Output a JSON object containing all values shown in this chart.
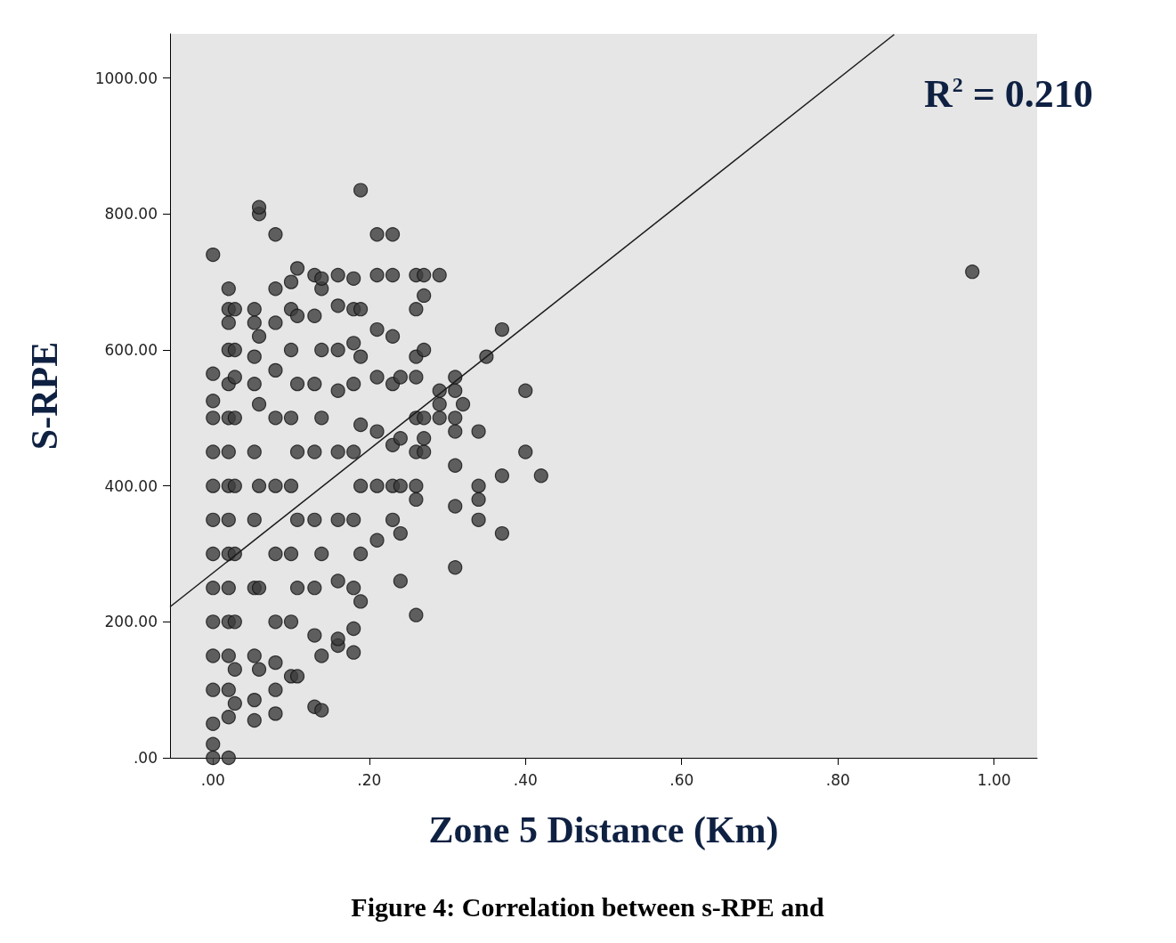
{
  "chart_data": {
    "type": "scatter",
    "xlabel": "Zone 5 Distance (Km)",
    "ylabel": "S-RPE",
    "annotations": [
      "R$^{2}$ = 0.210",
      "Figure 4: Correlation between s-RPE and"
    ],
    "xlim": [
      -0.055,
      1.055
    ],
    "ylim": [
      0,
      1065
    ],
    "xticks": [
      {
        "value": 0,
        "label": ".00"
      },
      {
        "value": 0.2,
        "label": ".20"
      },
      {
        "value": 0.4,
        "label": ".40"
      },
      {
        "value": 0.6,
        "label": ".60"
      },
      {
        "value": 0.8,
        "label": ".80"
      },
      {
        "value": 1,
        "label": "1.00"
      }
    ],
    "yticks": [
      {
        "value": 0,
        "label": ".00"
      },
      {
        "value": 200,
        "label": "200.00"
      },
      {
        "value": 400,
        "label": "400.00"
      },
      {
        "value": 600,
        "label": "600.00"
      },
      {
        "value": 800,
        "label": "800.00"
      },
      {
        "value": 1000,
        "label": "1000.00"
      }
    ],
    "grid": false,
    "marker": "circle",
    "series": [
      {
        "color": "#3c3c3c",
        "x": [
          0,
          0,
          0,
          0,
          0,
          0,
          0,
          0,
          0,
          0,
          0,
          0,
          0,
          0,
          0,
          0.02,
          0.02,
          0.02,
          0.02,
          0.02,
          0.02,
          0.02,
          0.02,
          0.02,
          0.02,
          0.02,
          0.02,
          0.02,
          0.02,
          0.02,
          0.02,
          0.028,
          0.028,
          0.028,
          0.028,
          0.028,
          0.028,
          0.028,
          0.028,
          0.028,
          0.053,
          0.053,
          0.053,
          0.053,
          0.053,
          0.053,
          0.053,
          0.053,
          0.053,
          0.053,
          0.059,
          0.059,
          0.059,
          0.059,
          0.059,
          0.059,
          0.059,
          0.08,
          0.08,
          0.08,
          0.08,
          0.08,
          0.08,
          0.08,
          0.08,
          0.08,
          0.08,
          0.08,
          0.1,
          0.1,
          0.1,
          0.1,
          0.1,
          0.1,
          0.1,
          0.1,
          0.108,
          0.108,
          0.108,
          0.108,
          0.108,
          0.108,
          0.108,
          0.13,
          0.13,
          0.13,
          0.13,
          0.13,
          0.13,
          0.13,
          0.13,
          0.139,
          0.139,
          0.139,
          0.139,
          0.139,
          0.139,
          0.139,
          0.16,
          0.16,
          0.16,
          0.16,
          0.16,
          0.16,
          0.16,
          0.16,
          0.16,
          0.18,
          0.18,
          0.18,
          0.18,
          0.18,
          0.18,
          0.18,
          0.18,
          0.18,
          0.189,
          0.189,
          0.189,
          0.189,
          0.189,
          0.189,
          0.189,
          0.21,
          0.21,
          0.21,
          0.21,
          0.21,
          0.21,
          0.21,
          0.23,
          0.23,
          0.23,
          0.23,
          0.23,
          0.23,
          0.23,
          0.24,
          0.24,
          0.24,
          0.24,
          0.24,
          0.26,
          0.26,
          0.26,
          0.26,
          0.26,
          0.26,
          0.26,
          0.26,
          0.26,
          0.27,
          0.27,
          0.27,
          0.27,
          0.27,
          0.27,
          0.29,
          0.29,
          0.29,
          0.29,
          0.31,
          0.31,
          0.31,
          0.31,
          0.31,
          0.31,
          0.31,
          0.32,
          0.34,
          0.34,
          0.34,
          0.34,
          0.35,
          0.37,
          0.37,
          0.37,
          0.4,
          0.4,
          0.42,
          0.972
        ],
        "values": [
          0,
          20,
          50,
          100,
          150,
          200,
          250,
          300,
          350,
          400,
          450,
          500,
          525,
          565,
          740,
          0,
          60,
          100,
          150,
          200,
          250,
          300,
          350,
          400,
          450,
          500,
          550,
          600,
          640,
          660,
          690,
          80,
          130,
          200,
          300,
          400,
          500,
          560,
          600,
          660,
          55,
          85,
          150,
          250,
          350,
          450,
          550,
          590,
          640,
          660,
          130,
          250,
          400,
          520,
          620,
          800,
          810,
          65,
          100,
          140,
          200,
          300,
          400,
          500,
          570,
          640,
          690,
          770,
          120,
          200,
          300,
          400,
          500,
          600,
          660,
          700,
          120,
          250,
          350,
          450,
          550,
          650,
          720,
          75,
          180,
          250,
          350,
          450,
          550,
          650,
          710,
          70,
          150,
          300,
          500,
          600,
          690,
          705,
          165,
          175,
          260,
          350,
          450,
          540,
          600,
          665,
          710,
          155,
          190,
          250,
          350,
          450,
          550,
          610,
          660,
          705,
          230,
          300,
          400,
          490,
          590,
          660,
          835,
          320,
          400,
          480,
          560,
          630,
          710,
          770,
          350,
          400,
          460,
          550,
          620,
          710,
          770,
          260,
          330,
          400,
          470,
          560,
          210,
          380,
          400,
          450,
          500,
          560,
          590,
          660,
          710,
          450,
          470,
          500,
          600,
          680,
          710,
          500,
          520,
          540,
          710,
          280,
          370,
          430,
          480,
          500,
          540,
          560,
          520,
          350,
          380,
          400,
          480,
          590,
          330,
          415,
          630,
          450,
          540,
          415,
          715
        ]
      },
      {
        "type": "line",
        "color": "#1a1a1a",
        "marker": "none",
        "x": [
          -0.055,
          0.872
        ],
        "values": [
          222,
          1064
        ]
      }
    ]
  }
}
